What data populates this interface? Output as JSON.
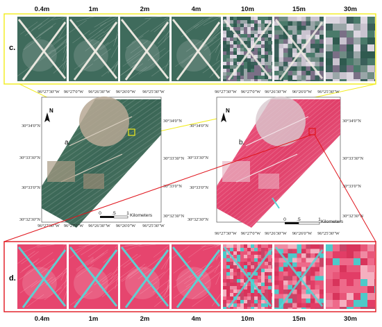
{
  "figure": {
    "panel_c": {
      "letter": "c.",
      "labels": [
        "0.4m",
        "1m",
        "2m",
        "4m",
        "10m",
        "15m",
        "30m"
      ]
    },
    "panel_d": {
      "letter": "d.",
      "labels": [
        "0.4m",
        "1m",
        "2m",
        "4m",
        "10m",
        "15m",
        "30m"
      ]
    },
    "map_a": {
      "letter": "a.",
      "north": "N",
      "top_lons": [
        "96°27'30\"W",
        "96°27'0\"W",
        "96°26'30\"W",
        "96°26'0\"W",
        "96°25'30\"W"
      ],
      "bottom_lons": [
        "96°27'30\"W",
        "96°27'0\"W",
        "96°26'30\"W",
        "96°26'0\"W",
        "96°25'30\"W"
      ],
      "left_lats": [
        "30°34'0\"N",
        "30°33'30\"N",
        "30°33'0\"N",
        "30°32'30\"N"
      ],
      "right_lats": [
        "30°34'0\"N",
        "30°33'30\"N",
        "30°33'0\"N",
        "30°32'30\"N"
      ],
      "scale_ticks": [
        "0",
        ".5",
        "1"
      ],
      "scale_unit": "Kilometers"
    },
    "map_b": {
      "letter": "b.",
      "north": "N",
      "top_lons": [
        "96°27'30\"W",
        "96°27'0\"W",
        "96°26'30\"W",
        "96°26'0\"W",
        "96°25'30\"W"
      ],
      "bottom_lons": [
        "96°27'30\"W",
        "96°27'0\"W",
        "96°26'30\"W",
        "96°26'0\"W",
        "96°25'30\"W"
      ],
      "left_lats": [
        "30°34'0\"N",
        "30°33'30\"N",
        "30°33'0\"N",
        "30°32'30\"N"
      ],
      "right_lats": [
        "30°34'0\"N",
        "30°33'30\"N",
        "30°33'0\"N",
        "30°32'30\"N"
      ],
      "scale_ticks": [
        "0",
        ".5",
        "1"
      ],
      "scale_unit": "Kilometers"
    },
    "colors": {
      "callout_yellow": "#f2ec1a",
      "callout_red": "#e0141c",
      "truecolor_field": "#3f6b5c",
      "falsecolor_field": "#e6456e",
      "falsecolor_road": "#56d6d6"
    }
  }
}
